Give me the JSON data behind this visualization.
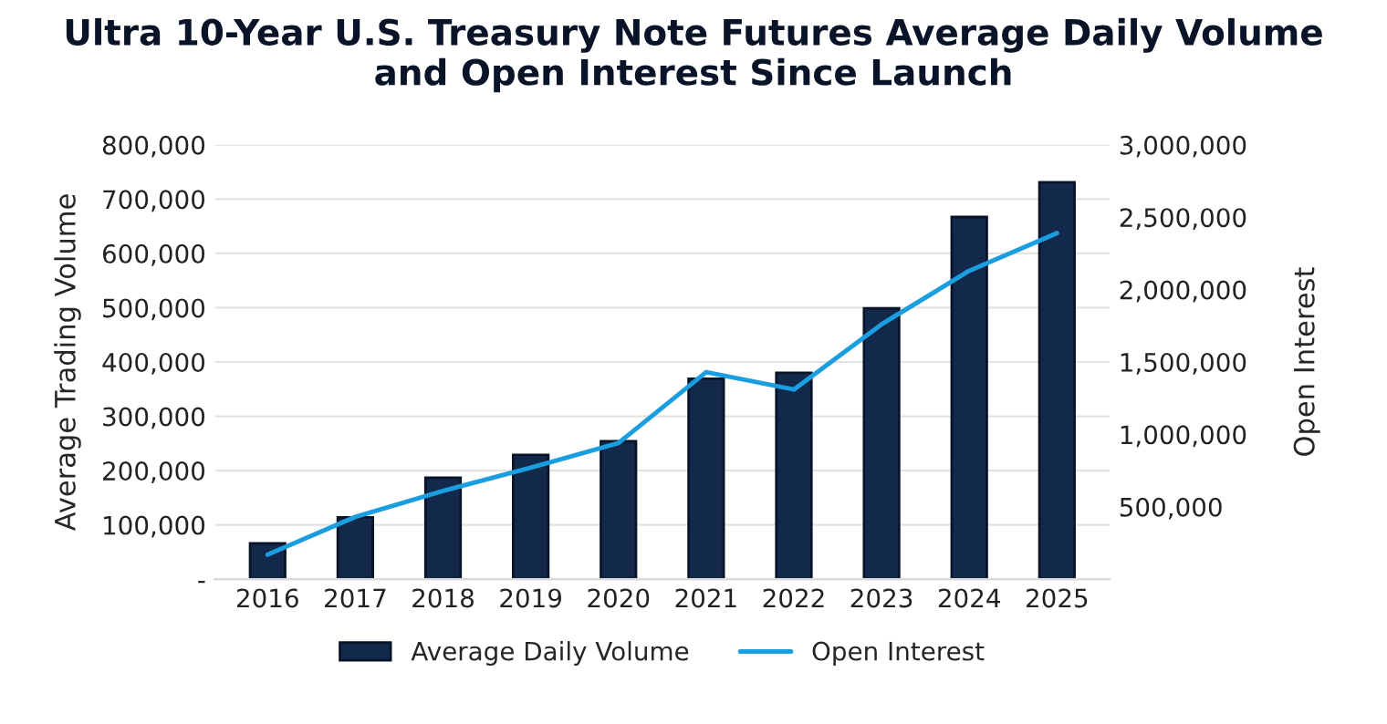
{
  "chart_data": {
    "type": "bar",
    "title": "Ultra 10-Year U.S. Treasury Note Futures Average Daily Volume\nand Open Interest Since Launch",
    "categories": [
      "2016",
      "2017",
      "2018",
      "2019",
      "2020",
      "2021",
      "2022",
      "2023",
      "2024",
      "2025"
    ],
    "ylabel": "Average Trading Volume",
    "y2label": "Open Interest",
    "series": [
      {
        "name": "Average Daily Volume",
        "color": "#13294b",
        "values": [
          66000,
          114000,
          187000,
          229000,
          254000,
          369000,
          380000,
          499000,
          667000,
          731000
        ]
      },
      {
        "name": "Open Interest",
        "type": "line",
        "axis": "y2",
        "color": "#1a9ee0",
        "values": [
          170000,
          430000,
          610000,
          770000,
          940000,
          1430000,
          1310000,
          1760000,
          2130000,
          2390000
        ]
      }
    ],
    "ylim": [
      0,
      800000
    ],
    "yticks": [
      {
        "value": 0,
        "label": "-"
      },
      {
        "value": 100000,
        "label": "100,000"
      },
      {
        "value": 200000,
        "label": "200,000"
      },
      {
        "value": 300000,
        "label": "300,000"
      },
      {
        "value": 400000,
        "label": "400,000"
      },
      {
        "value": 500000,
        "label": "500,000"
      },
      {
        "value": 600000,
        "label": "600,000"
      },
      {
        "value": 700000,
        "label": "700,000"
      },
      {
        "value": 800000,
        "label": "800,000"
      }
    ],
    "y2lim": [
      0,
      3000000
    ],
    "y2ticks": [
      {
        "value": 0,
        "label": null
      },
      {
        "value": 500000,
        "label": "500,000"
      },
      {
        "value": 1000000,
        "label": "1,000,000"
      },
      {
        "value": 1500000,
        "label": "1,500,000"
      },
      {
        "value": 2000000,
        "label": "2,000,000"
      },
      {
        "value": 2500000,
        "label": "2,500,000"
      },
      {
        "value": 3000000,
        "label": "3,000,000"
      }
    ],
    "grid": "y",
    "legend": "bottom",
    "marker": "none",
    "line_style": "solid"
  }
}
